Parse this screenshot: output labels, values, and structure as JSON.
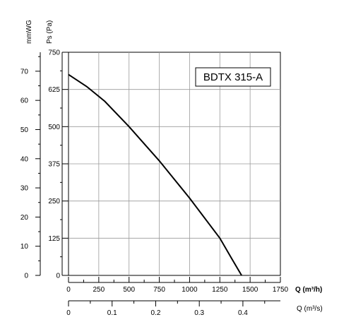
{
  "chart_data": {
    "type": "line",
    "title": "",
    "model_label": "BDTX 315-A",
    "pressure_axis": {
      "label": "Ps (Pa)",
      "range": [
        0,
        750
      ],
      "ticks": [
        "0",
        "125",
        "250",
        "375",
        "500",
        "625",
        "750"
      ]
    },
    "mmwg_axis": {
      "label": "mmWG",
      "range": [
        0,
        76.5
      ],
      "ticks": [
        "0",
        "10",
        "20",
        "30",
        "40",
        "50",
        "60",
        "70"
      ]
    },
    "flow_axis_m3h": {
      "label": "Q (m³/h)",
      "range": [
        0,
        1750
      ],
      "ticks": [
        "0",
        "250",
        "500",
        "750",
        "1000",
        "1250",
        "1500",
        "1750"
      ]
    },
    "flow_axis_m3s": {
      "label": "Q (m³/s)",
      "range": [
        0,
        0.486
      ],
      "ticks": [
        "0",
        "0.1",
        "0.2",
        "0.3",
        "0.4"
      ]
    },
    "grid": true,
    "series": [
      {
        "x": [
          0,
          150,
          300,
          500,
          750,
          1000,
          1250,
          1350,
          1430
        ],
        "y": [
          675,
          635,
          585,
          500,
          385,
          260,
          125,
          55,
          0
        ]
      }
    ]
  }
}
